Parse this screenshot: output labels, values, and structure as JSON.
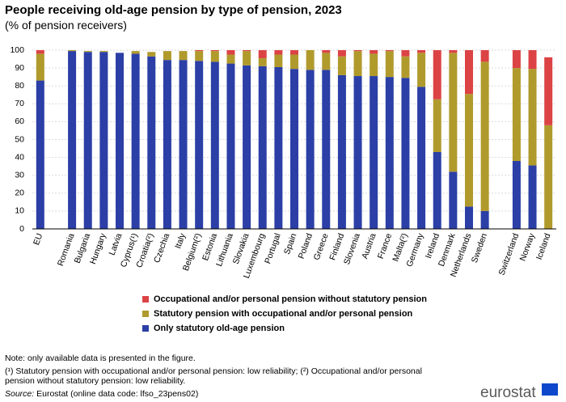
{
  "chart_data": {
    "type": "stacked-bar",
    "title": "People receiving old-age pension by type of pension, 2023",
    "subtitle": "(% of pension receivers)",
    "categories": [
      "EU",
      null,
      "Romania",
      "Bulgaria",
      "Hungary",
      "Latvia",
      "Cyprus(¹)",
      "Croatia(²)",
      "Czechia",
      "Italy",
      "Belgium(²)",
      "Estonia",
      "Lithuania",
      "Slovakia",
      "Luxembourg",
      "Portugal",
      "Spain",
      "Poland",
      "Greece",
      "Finland",
      "Slovenia",
      "Austria",
      "France",
      "Malta(²)",
      "Germany",
      "Ireland",
      "Denmark",
      "Netherlands",
      "Sweden",
      null,
      "Switzerland",
      "Norway",
      "Iceland"
    ],
    "series": [
      {
        "name": "Only statutory old-age pension",
        "color": "#2b3fa6",
        "values": [
          83,
          null,
          99.5,
          99,
          99,
          98.5,
          98,
          96.5,
          94.5,
          94.5,
          94,
          93.5,
          92.5,
          91.5,
          91,
          90.5,
          89.5,
          89,
          89,
          86,
          85.5,
          85.5,
          85,
          84.5,
          79.5,
          43,
          32,
          12.5,
          10,
          null,
          38,
          35.5,
          0
        ]
      },
      {
        "name": "Statutory pension with occupational and/or personal pension",
        "color": "#b09a2c",
        "values": [
          15,
          null,
          0.5,
          0.5,
          0.5,
          0,
          1.5,
          2.5,
          5,
          5,
          5.5,
          6,
          5,
          8,
          4.5,
          7,
          8,
          11,
          9.5,
          10.5,
          14,
          12.5,
          14.5,
          12,
          19,
          29.5,
          66.5,
          63,
          83.5,
          null,
          52,
          54,
          58
        ]
      },
      {
        "name": "Occupational and/or personal pension without statutory pension",
        "color": "#dc4345",
        "values": [
          2,
          null,
          0,
          0,
          0,
          0,
          0,
          0,
          0,
          0,
          0.5,
          0.5,
          2.5,
          0.5,
          4.5,
          2.5,
          2.5,
          0,
          1.5,
          3.5,
          0.5,
          2,
          0.5,
          3.5,
          1.5,
          27.5,
          1.5,
          24.5,
          6.5,
          null,
          10,
          10.5,
          38
        ]
      }
    ],
    "ylim": [
      0,
      100
    ],
    "yticks": [
      0,
      10,
      20,
      30,
      40,
      50,
      60,
      70,
      80,
      90,
      100
    ],
    "grid": true,
    "notes": [
      "Note: only available data is presented in the figure.",
      "(¹) Statutory pension with occupational and/or personal pension: low reliability; (²) Occupational and/or personal",
      "pension without statutory pension: low reliability."
    ],
    "source_label": "Source:",
    "source": "Eurostat (online data code: lfso_23pens02)",
    "logo": "eurostat"
  }
}
